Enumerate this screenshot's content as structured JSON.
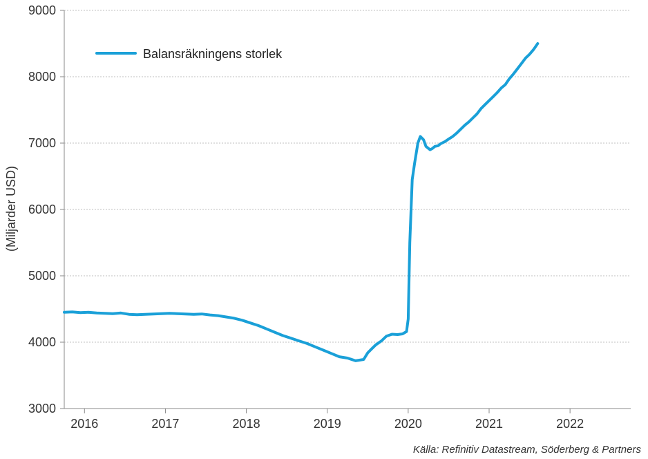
{
  "chart_data": {
    "type": "line",
    "ylabel": "(Miljarder USD)",
    "xlabel": "",
    "ylim": [
      3000,
      9000
    ],
    "yticks": [
      "3000",
      "4000",
      "5000",
      "6000",
      "7000",
      "8000",
      "9000"
    ],
    "xlim": [
      2015.75,
      2022.75
    ],
    "xtick_labels": [
      "2016",
      "2017",
      "2018",
      "2019",
      "2020",
      "2021",
      "2022"
    ],
    "grid": "horizontal",
    "legend_position": "top-left",
    "colors": {
      "line": "#1aa0d8",
      "grid": "#bfbfbf",
      "axis": "#888888"
    },
    "series": [
      {
        "name": "Balansräkningens storlek",
        "x": [
          2015.75,
          2015.85,
          2015.95,
          2016.05,
          2016.15,
          2016.25,
          2016.35,
          2016.45,
          2016.55,
          2016.65,
          2016.75,
          2016.85,
          2016.95,
          2017.05,
          2017.15,
          2017.25,
          2017.35,
          2017.45,
          2017.55,
          2017.65,
          2017.75,
          2017.85,
          2017.95,
          2018.05,
          2018.15,
          2018.25,
          2018.35,
          2018.45,
          2018.55,
          2018.65,
          2018.75,
          2018.85,
          2018.95,
          2019.05,
          2019.15,
          2019.25,
          2019.35,
          2019.45,
          2019.5,
          2019.55,
          2019.6,
          2019.67,
          2019.73,
          2019.8,
          2019.87,
          2019.93,
          2019.98,
          2020.0,
          2020.02,
          2020.05,
          2020.08,
          2020.12,
          2020.15,
          2020.19,
          2020.22,
          2020.27,
          2020.3,
          2020.33,
          2020.37,
          2020.4,
          2020.45,
          2020.5,
          2020.55,
          2020.6,
          2020.65,
          2020.7,
          2020.75,
          2020.8,
          2020.85,
          2020.9,
          2020.95,
          2021.0,
          2021.05,
          2021.1,
          2021.15,
          2021.2,
          2021.25,
          2021.3,
          2021.35,
          2021.4,
          2021.45,
          2021.5,
          2021.55,
          2021.6
        ],
        "values": [
          4450,
          4455,
          4445,
          4450,
          4440,
          4435,
          4430,
          4440,
          4420,
          4415,
          4420,
          4425,
          4430,
          4435,
          4430,
          4425,
          4420,
          4425,
          4410,
          4400,
          4380,
          4360,
          4330,
          4290,
          4250,
          4200,
          4150,
          4100,
          4060,
          4020,
          3980,
          3930,
          3880,
          3830,
          3780,
          3760,
          3720,
          3740,
          3840,
          3900,
          3960,
          4020,
          4090,
          4120,
          4115,
          4125,
          4160,
          4350,
          5500,
          6450,
          6700,
          7000,
          7100,
          7050,
          6950,
          6900,
          6920,
          6950,
          6960,
          6990,
          7020,
          7060,
          7100,
          7150,
          7210,
          7270,
          7320,
          7380,
          7440,
          7520,
          7580,
          7640,
          7700,
          7760,
          7830,
          7880,
          7970,
          8040,
          8120,
          8200,
          8280,
          8340,
          8410,
          8500
        ]
      }
    ]
  },
  "source": "Källa: Refinitiv Datastream, Söderberg & Partners"
}
